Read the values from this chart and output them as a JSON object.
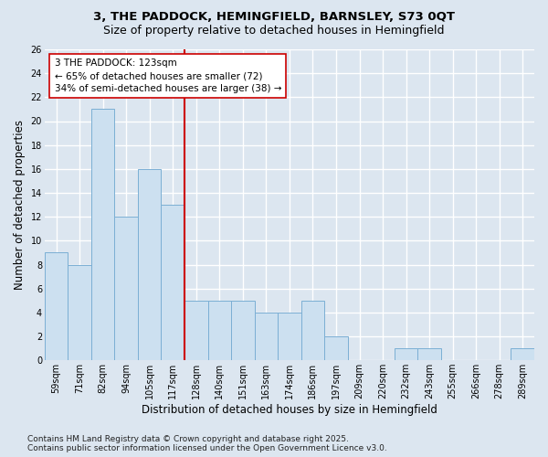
{
  "title1": "3, THE PADDOCK, HEMINGFIELD, BARNSLEY, S73 0QT",
  "title2": "Size of property relative to detached houses in Hemingfield",
  "xlabel": "Distribution of detached houses by size in Hemingfield",
  "ylabel": "Number of detached properties",
  "categories": [
    "59sqm",
    "71sqm",
    "82sqm",
    "94sqm",
    "105sqm",
    "117sqm",
    "128sqm",
    "140sqm",
    "151sqm",
    "163sqm",
    "174sqm",
    "186sqm",
    "197sqm",
    "209sqm",
    "220sqm",
    "232sqm",
    "243sqm",
    "255sqm",
    "266sqm",
    "278sqm",
    "289sqm"
  ],
  "values": [
    9,
    8,
    21,
    12,
    16,
    13,
    5,
    5,
    5,
    4,
    4,
    5,
    2,
    0,
    0,
    1,
    1,
    0,
    0,
    0,
    1
  ],
  "bar_color": "#cce0f0",
  "bar_edge_color": "#7bafd4",
  "vline_index": 5,
  "vline_color": "#cc0000",
  "annotation_box_edge": "#cc0000",
  "marker_label": "3 THE PADDOCK: 123sqm",
  "annotation_line1": "← 65% of detached houses are smaller (72)",
  "annotation_line2": "34% of semi-detached houses are larger (38) →",
  "ylim": [
    0,
    26
  ],
  "yticks": [
    0,
    2,
    4,
    6,
    8,
    10,
    12,
    14,
    16,
    18,
    20,
    22,
    24,
    26
  ],
  "footer1": "Contains HM Land Registry data © Crown copyright and database right 2025.",
  "footer2": "Contains public sector information licensed under the Open Government Licence v3.0.",
  "background_color": "#dce6f0",
  "plot_bg_color": "#dce6f0",
  "title1_fontsize": 9.5,
  "title2_fontsize": 9,
  "axis_label_fontsize": 8.5,
  "tick_fontsize": 7,
  "annot_fontsize": 7.5,
  "footer_fontsize": 6.5,
  "grid_color": "#ffffff",
  "grid_lw": 1.0
}
